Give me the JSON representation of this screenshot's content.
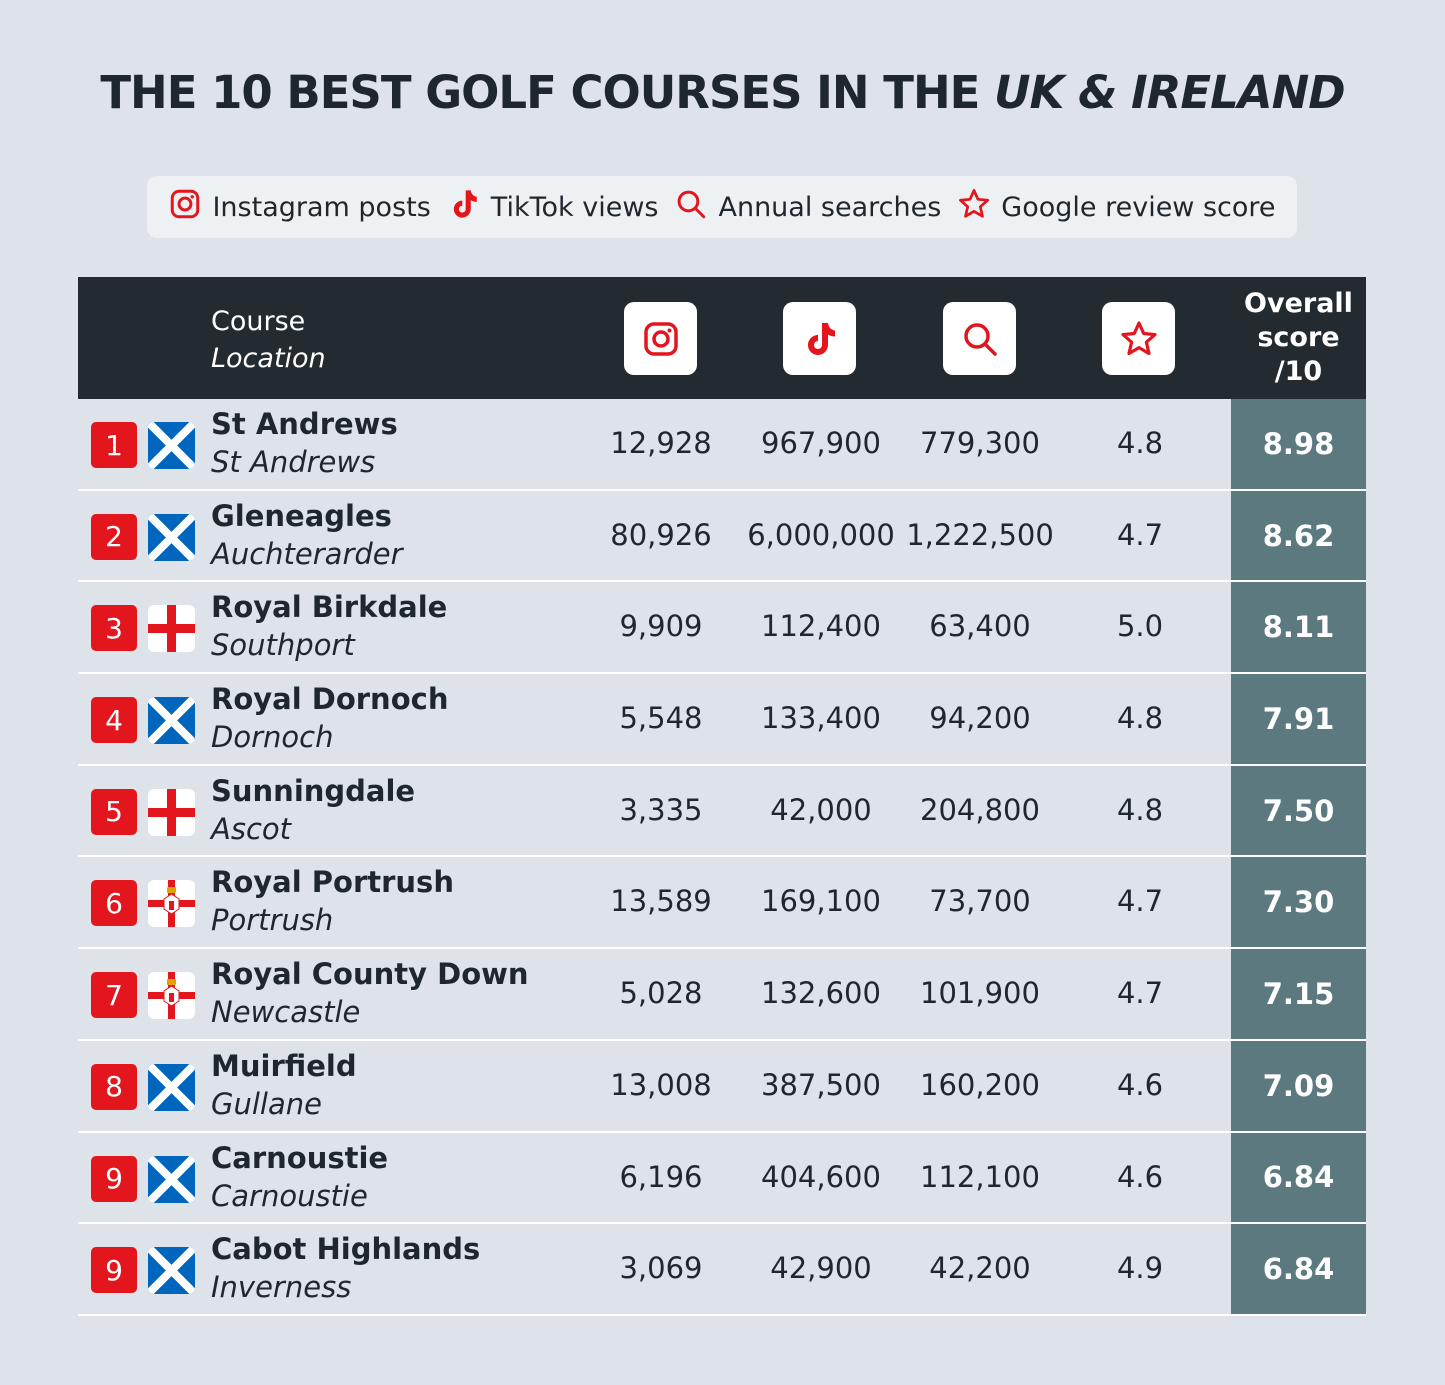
{
  "title": {
    "main": "THE 10 BEST GOLF COURSES IN THE ",
    "italic": "UK & IRELAND"
  },
  "legend": [
    {
      "icon": "instagram-icon",
      "label": "Instagram posts"
    },
    {
      "icon": "tiktok-icon",
      "label": "TikTok views"
    },
    {
      "icon": "search-icon",
      "label": "Annual searches"
    },
    {
      "icon": "star-icon",
      "label": "Google review score"
    }
  ],
  "header": {
    "course": "Course",
    "location": "Location",
    "overall_line1": "Overall",
    "overall_line2": "score",
    "overall_line3": "/10"
  },
  "colors": {
    "accent": "#e3151d",
    "header_bg": "#232b31",
    "score_bg": "#5d7980",
    "page_bg": "#dde3e8"
  },
  "chart_data": {
    "type": "table",
    "columns": [
      "Course",
      "Location",
      "Instagram posts",
      "TikTok views",
      "Annual searches",
      "Google review score",
      "Overall score /10"
    ],
    "rows": [
      {
        "rank": "1",
        "flag": "scotland",
        "course": "St Andrews",
        "location": "St Andrews",
        "instagram": "12,928",
        "tiktok": "967,900",
        "searches": "779,300",
        "review": "4.8",
        "score": "8.98"
      },
      {
        "rank": "2",
        "flag": "scotland",
        "course": "Gleneagles",
        "location": "Auchterarder",
        "instagram": "80,926",
        "tiktok": "6,000,000",
        "searches": "1,222,500",
        "review": "4.7",
        "score": "8.62"
      },
      {
        "rank": "3",
        "flag": "england",
        "course": "Royal Birkdale",
        "location": "Southport",
        "instagram": "9,909",
        "tiktok": "112,400",
        "searches": "63,400",
        "review": "5.0",
        "score": "8.11"
      },
      {
        "rank": "4",
        "flag": "scotland",
        "course": "Royal Dornoch",
        "location": "Dornoch",
        "instagram": "5,548",
        "tiktok": "133,400",
        "searches": "94,200",
        "review": "4.8",
        "score": "7.91"
      },
      {
        "rank": "5",
        "flag": "england",
        "course": "Sunningdale",
        "location": "Ascot",
        "instagram": "3,335",
        "tiktok": "42,000",
        "searches": "204,800",
        "review": "4.8",
        "score": "7.50"
      },
      {
        "rank": "6",
        "flag": "northern-ireland",
        "course": "Royal Portrush",
        "location": "Portrush",
        "instagram": "13,589",
        "tiktok": "169,100",
        "searches": "73,700",
        "review": "4.7",
        "score": "7.30"
      },
      {
        "rank": "7",
        "flag": "northern-ireland",
        "course": "Royal County Down",
        "location": "Newcastle",
        "instagram": "5,028",
        "tiktok": "132,600",
        "searches": "101,900",
        "review": "4.7",
        "score": "7.15"
      },
      {
        "rank": "8",
        "flag": "scotland",
        "course": "Muirfield",
        "location": "Gullane",
        "instagram": "13,008",
        "tiktok": "387,500",
        "searches": "160,200",
        "review": "4.6",
        "score": "7.09"
      },
      {
        "rank": "9",
        "flag": "scotland",
        "course": "Carnoustie",
        "location": "Carnoustie",
        "instagram": "6,196",
        "tiktok": "404,600",
        "searches": "112,100",
        "review": "4.6",
        "score": "6.84"
      },
      {
        "rank": "9",
        "flag": "scotland",
        "course": "Cabot Highlands",
        "location": "Inverness",
        "instagram": "3,069",
        "tiktok": "42,900",
        "searches": "42,200",
        "review": "4.9",
        "score": "6.84"
      }
    ]
  }
}
